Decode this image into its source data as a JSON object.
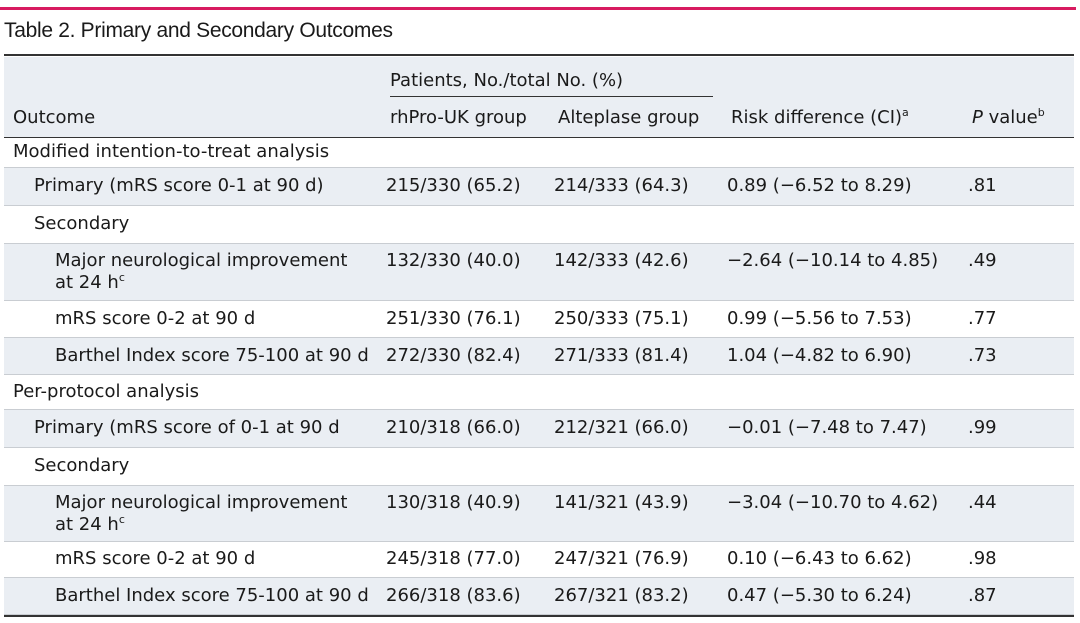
{
  "title": "Table 2. Primary and Secondary Outcomes",
  "header": {
    "group_label": "Patients, No./total No. (%)",
    "outcome": "Outcome",
    "rhpro": "rhPro-UK group",
    "alteplase": "Alteplase group",
    "risk": "Risk difference (CI)",
    "risk_sup": "a",
    "pval_italic": "P",
    "pval_rest": " value",
    "pval_sup": "b"
  },
  "rows": [
    {
      "label": "Modified intention-to-treat analysis",
      "sup": "",
      "rhpro": "",
      "alteplase": "",
      "risk": "",
      "p": ""
    },
    {
      "label": "Primary (mRS score 0-1 at 90 d)",
      "sup": "",
      "rhpro": "215/330 (65.2)",
      "alteplase": "214/333 (64.3)",
      "risk": "0.89 (−6.52 to 8.29)",
      "p": ".81"
    },
    {
      "label": "Secondary",
      "sup": "",
      "rhpro": "",
      "alteplase": "",
      "risk": "",
      "p": ""
    },
    {
      "label": "Major neurological improvement at 24 h",
      "sup": "c",
      "rhpro": "132/330 (40.0)",
      "alteplase": "142/333 (42.6)",
      "risk": "−2.64 (−10.14 to 4.85)",
      "p": ".49"
    },
    {
      "label": "mRS score 0-2 at 90 d",
      "sup": "",
      "rhpro": "251/330 (76.1)",
      "alteplase": "250/333 (75.1)",
      "risk": "0.99 (−5.56 to 7.53)",
      "p": ".77"
    },
    {
      "label": "Barthel Index score 75-100 at 90 d",
      "sup": "",
      "rhpro": "272/330 (82.4)",
      "alteplase": "271/333 (81.4)",
      "risk": "1.04 (−4.82 to 6.90)",
      "p": ".73"
    },
    {
      "label": "Per-protocol analysis",
      "sup": "",
      "rhpro": "",
      "alteplase": "",
      "risk": "",
      "p": ""
    },
    {
      "label": "Primary (mRS score of 0-1 at 90 d",
      "sup": "",
      "rhpro": "210/318 (66.0)",
      "alteplase": "212/321 (66.0)",
      "risk": "−0.01 (−7.48 to 7.47)",
      "p": ".99"
    },
    {
      "label": "Secondary",
      "sup": "",
      "rhpro": "",
      "alteplase": "",
      "risk": "",
      "p": ""
    },
    {
      "label": "Major neurological improvement at 24 h",
      "sup": "c",
      "rhpro": "130/318 (40.9)",
      "alteplase": "141/321 (43.9)",
      "risk": "−3.04 (−10.70 to 4.62)",
      "p": ".44"
    },
    {
      "label": "mRS score 0-2 at 90 d",
      "sup": "",
      "rhpro": "245/318 (77.0)",
      "alteplase": "247/321 (76.9)",
      "risk": "0.10 (−6.43 to 6.62)",
      "p": ".98"
    },
    {
      "label": "Barthel Index score 75-100 at 90 d",
      "sup": "",
      "rhpro": "266/318 (83.6)",
      "alteplase": "267/321 (83.2)",
      "risk": "0.47 (−5.30 to 6.24)",
      "p": ".87"
    }
  ]
}
